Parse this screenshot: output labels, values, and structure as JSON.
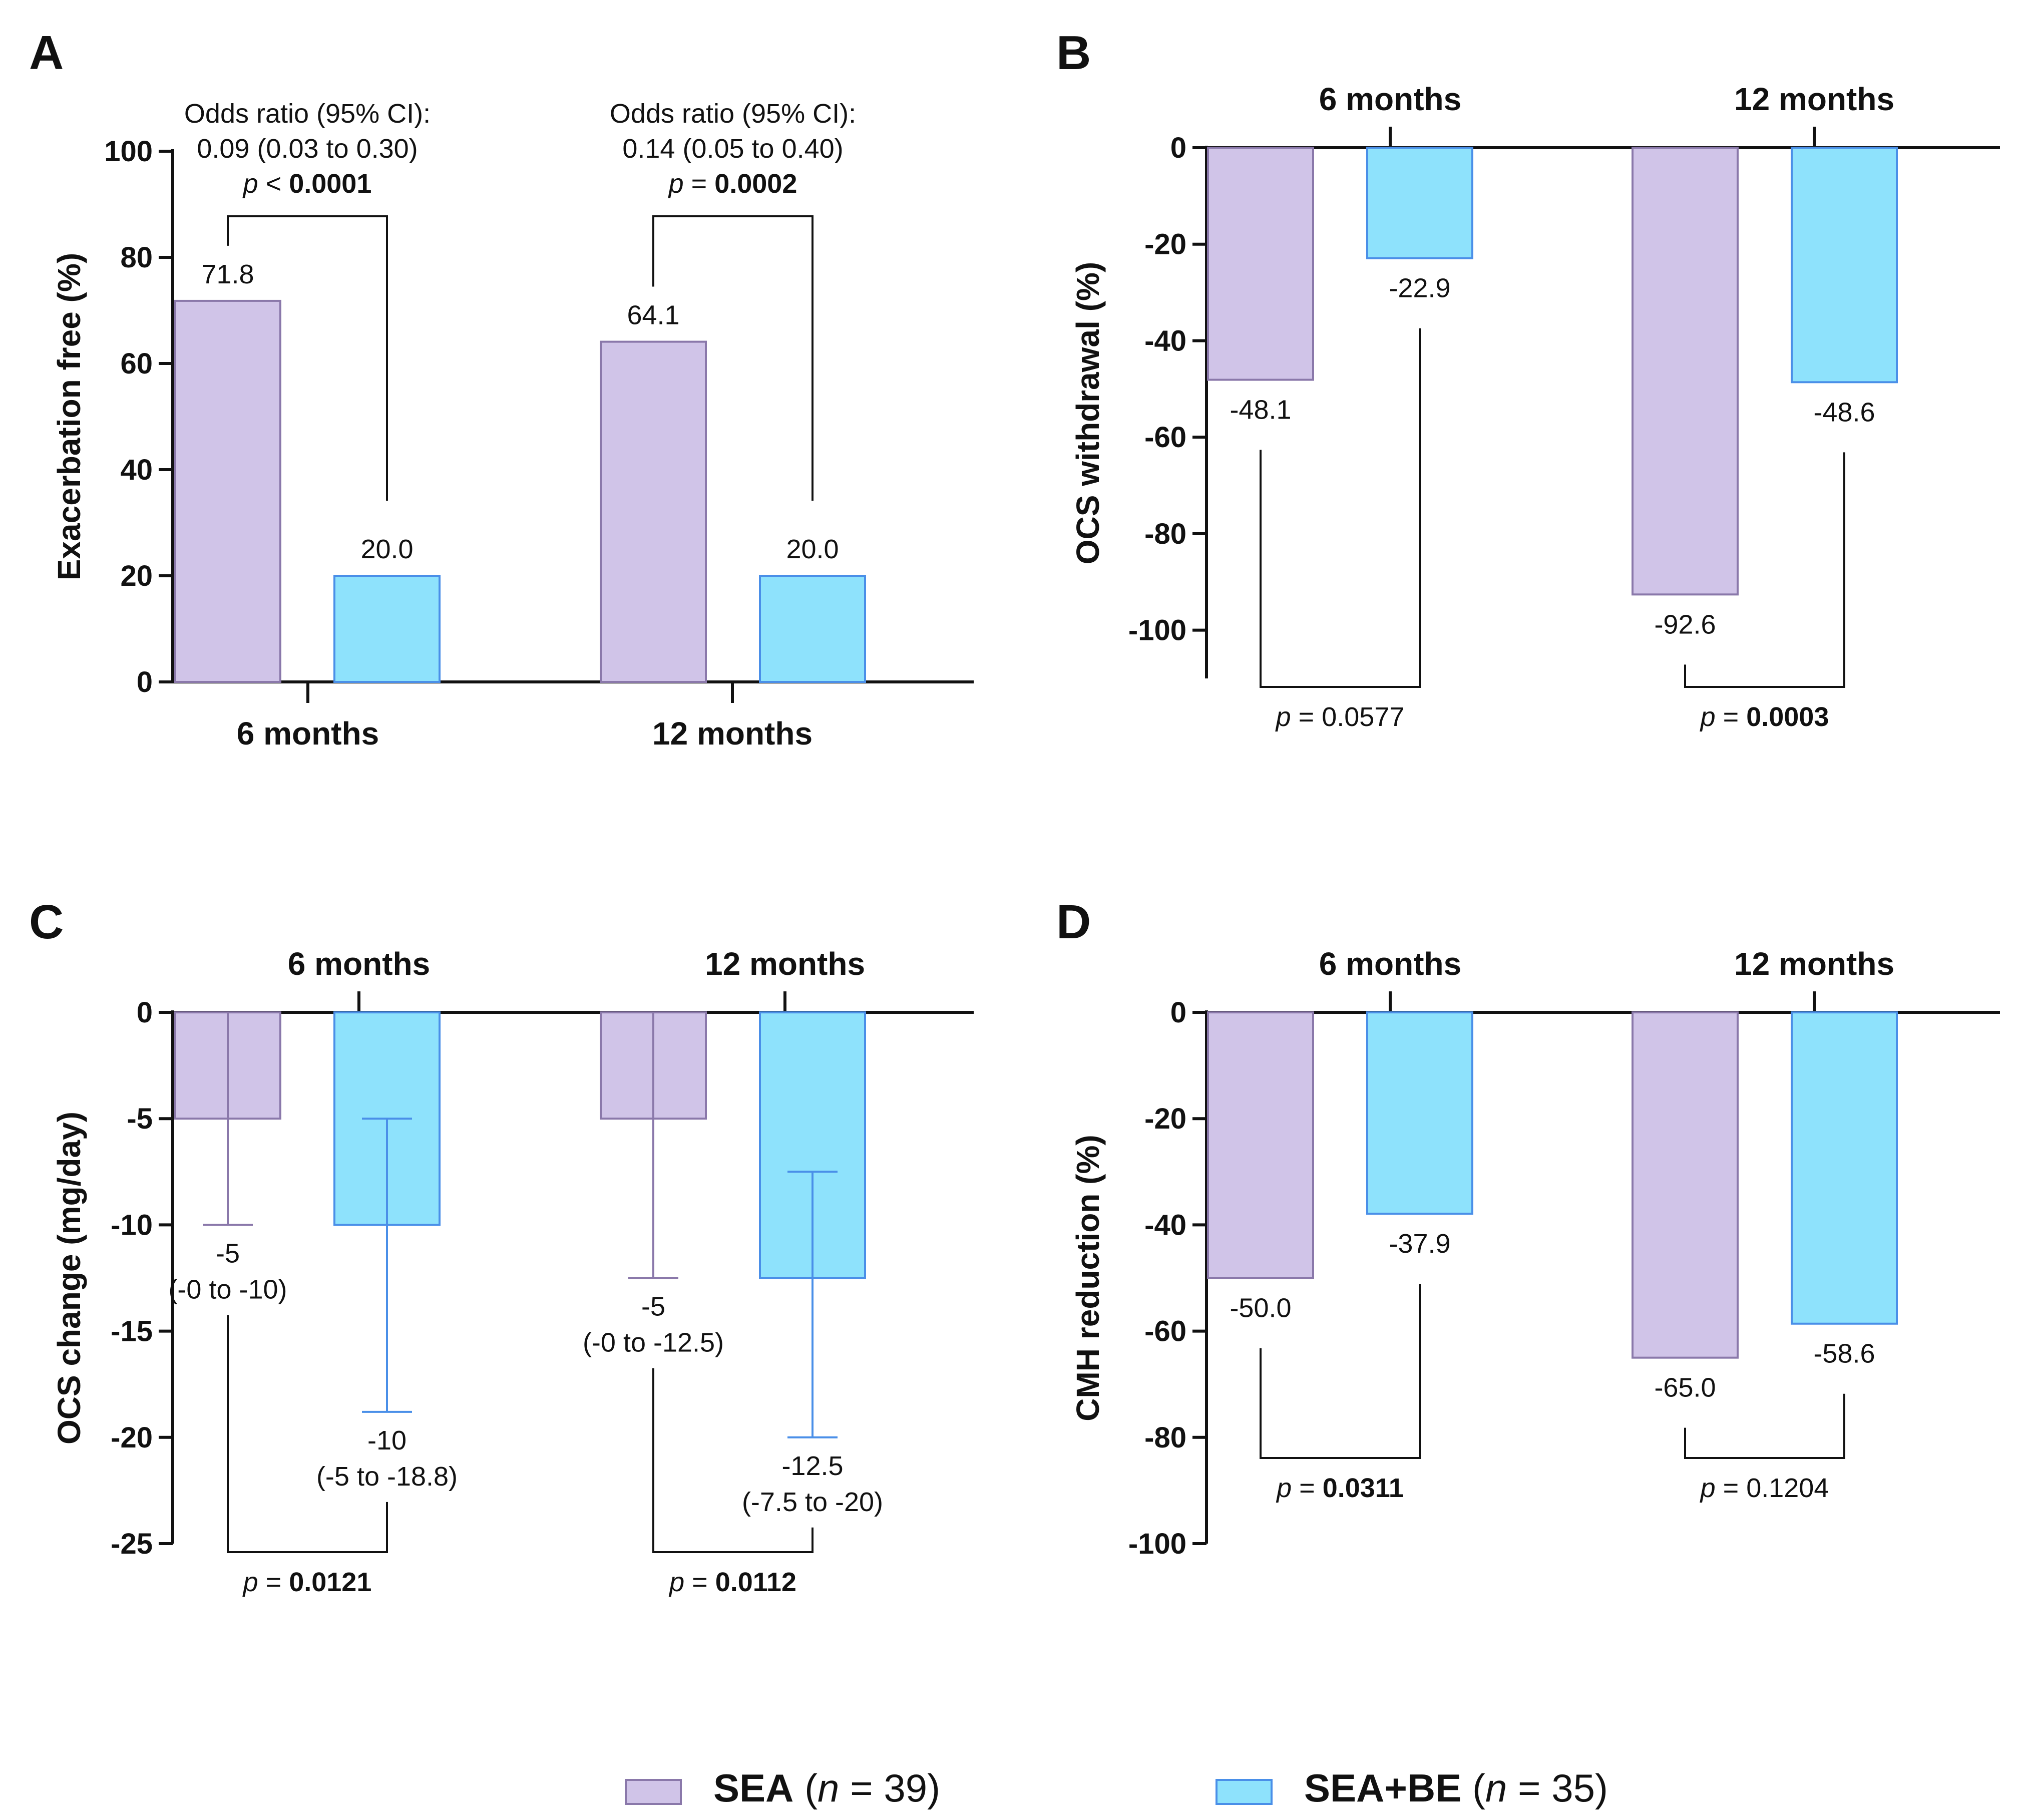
{
  "colors": {
    "sea_fill": "#d0c4e8",
    "sea_stroke": "#8a78aa",
    "be_fill": "#8ee2fc",
    "be_stroke": "#4a8fe8",
    "axis": "#111111"
  },
  "legend": [
    {
      "name": "SEA",
      "n_label": "n",
      "n_value": "= 39)",
      "open": "("
    },
    {
      "name": "SEA+BE",
      "n_label": "n",
      "n_value": "= 35)",
      "open": "("
    }
  ],
  "chart_data": [
    {
      "panel": "A",
      "type": "bar",
      "ylabel": "Exacerbation free (%)",
      "ylim": [
        0,
        100
      ],
      "yticks": [
        "0",
        "20",
        "40",
        "60",
        "80",
        "100"
      ],
      "categories": [
        "6 months",
        "12 months"
      ],
      "category_position": "bottom",
      "series": [
        {
          "name": "SEA",
          "values": [
            71.8,
            64.1
          ]
        },
        {
          "name": "SEA+BE",
          "values": [
            20.0,
            20.0
          ]
        }
      ],
      "value_labels": [
        [
          "71.8",
          "20.0"
        ],
        [
          "64.1",
          "20.0"
        ]
      ],
      "annotations": [
        {
          "l1": "Odds ratio (95% CI):",
          "l2": "0.09 (0.03 to 0.30)",
          "p": "p",
          "op": "<",
          "pv": "0.0001",
          "pv_bold": true
        },
        {
          "l1": "Odds ratio (95% CI):",
          "l2": "0.14 (0.05 to 0.40)",
          "p": "p",
          "op": "=",
          "pv": "0.0002",
          "pv_bold": true
        }
      ]
    },
    {
      "panel": "B",
      "type": "bar",
      "ylabel": "OCS withdrawal (%)",
      "ylim": [
        -110,
        0
      ],
      "yticks": [
        "0",
        "-20",
        "-40",
        "-60",
        "-80",
        "-100"
      ],
      "categories": [
        "6 months",
        "12 months"
      ],
      "category_position": "top",
      "series": [
        {
          "name": "SEA",
          "values": [
            -48.1,
            -92.6
          ]
        },
        {
          "name": "SEA+BE",
          "values": [
            -22.9,
            -48.6
          ]
        }
      ],
      "value_labels": [
        [
          "-48.1",
          "-22.9"
        ],
        [
          "-92.6",
          "-48.6"
        ]
      ],
      "annotations": [
        {
          "p": "p",
          "op": "=",
          "pv": "0.0577",
          "pv_bold": false
        },
        {
          "p": "p",
          "op": "=",
          "pv": "0.0003",
          "pv_bold": true
        }
      ]
    },
    {
      "panel": "C",
      "type": "bar",
      "ylabel": "OCS change (mg/day)",
      "ylim": [
        -25,
        0
      ],
      "yticks": [
        "0",
        "-5",
        "-10",
        "-15",
        "-20",
        "-25"
      ],
      "categories": [
        "6 months",
        "12 months"
      ],
      "category_position": "top",
      "series": [
        {
          "name": "SEA",
          "values": [
            -5,
            -5
          ],
          "ci_low": [
            -10,
            -12.5
          ],
          "ci_high": [
            0,
            0
          ]
        },
        {
          "name": "SEA+BE",
          "values": [
            -10,
            -12.5
          ],
          "ci_low": [
            -18.8,
            -20
          ],
          "ci_high": [
            -5,
            -7.5
          ]
        }
      ],
      "value_labels": [
        [
          "-5",
          "-10"
        ],
        [
          "-5",
          "-12.5"
        ]
      ],
      "ci_labels": [
        [
          "(-0 to -10)",
          "(-5 to -18.8)"
        ],
        [
          "(-0 to -12.5)",
          "(-7.5 to -20)"
        ]
      ],
      "annotations": [
        {
          "p": "p",
          "op": "=",
          "pv": "0.0121",
          "pv_bold": true
        },
        {
          "p": "p",
          "op": "=",
          "pv": "0.0112",
          "pv_bold": true
        }
      ]
    },
    {
      "panel": "D",
      "type": "bar",
      "ylabel": "CMH reduction (%)",
      "ylim": [
        -100,
        0
      ],
      "yticks": [
        "0",
        "-20",
        "-40",
        "-60",
        "-80",
        "-100"
      ],
      "categories": [
        "6 months",
        "12 months"
      ],
      "category_position": "top",
      "series": [
        {
          "name": "SEA",
          "values": [
            -50.0,
            -65.0
          ]
        },
        {
          "name": "SEA+BE",
          "values": [
            -37.9,
            -58.6
          ]
        }
      ],
      "value_labels": [
        [
          "-50.0",
          "-37.9"
        ],
        [
          "-65.0",
          "-58.6"
        ]
      ],
      "annotations": [
        {
          "p": "p",
          "op": "=",
          "pv": "0.0311",
          "pv_bold": true
        },
        {
          "p": "p",
          "op": "=",
          "pv": "0.1204",
          "pv_bold": false
        }
      ]
    }
  ]
}
